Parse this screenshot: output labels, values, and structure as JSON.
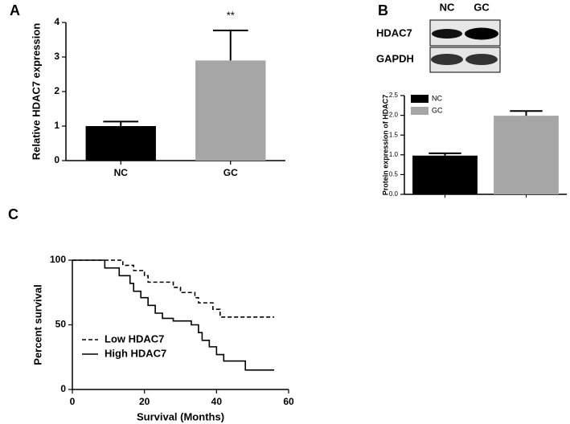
{
  "chart_data": [
    {
      "type": "bar",
      "panel": "A",
      "ylabel": "Relative HDAC7 expression",
      "categories": [
        "NC",
        "GC"
      ],
      "values": [
        1.0,
        2.9
      ],
      "errors": [
        0.13,
        0.87
      ],
      "colors": [
        "#000000",
        "#a6a6a6"
      ],
      "annotations": [
        null,
        "**"
      ],
      "ylim": [
        0,
        4
      ],
      "yticks": [
        0,
        1,
        2,
        3,
        4
      ]
    },
    {
      "type": "bar",
      "panel": "B",
      "ylabel": "Protein expression of HDAC7",
      "blot": {
        "lanes": [
          "NC",
          "GC"
        ],
        "rows": [
          "HDAC7",
          "GAPDH"
        ]
      },
      "series": [
        {
          "name": "NC",
          "color": "#000000",
          "values": [
            0.98
          ],
          "errors": [
            0.06
          ]
        },
        {
          "name": "GC",
          "color": "#a6a6a6",
          "values": [
            1.99
          ],
          "errors": [
            0.12
          ]
        }
      ],
      "legend": "upper left",
      "ylim": [
        0,
        2.5
      ],
      "yticks": [
        {
          "value": 0,
          "label": "0.0"
        },
        {
          "value": 0.5,
          "label": "0.5"
        },
        {
          "value": 1,
          "label": "1.0"
        },
        {
          "value": 1.5,
          "label": "1.5"
        },
        {
          "value": 2,
          "label": "2.0"
        },
        {
          "value": 2.5,
          "label": "2.5"
        }
      ]
    },
    {
      "type": "step",
      "panel": "C",
      "xlabel": "Survival (Months)",
      "ylabel": "Percent survival",
      "series": [
        {
          "name": "Low HDAC7",
          "color": "#000000",
          "dash": true,
          "x": [
            0,
            14,
            17,
            20,
            21,
            28,
            30,
            34,
            35,
            39,
            41,
            56
          ],
          "values": [
            100,
            96,
            92,
            88,
            83,
            79,
            75,
            71,
            67,
            62,
            56,
            56
          ]
        },
        {
          "name": "High HDAC7",
          "color": "#000000",
          "dash": false,
          "x": [
            0,
            9,
            13,
            16,
            17,
            19,
            21,
            23,
            25,
            28,
            33,
            35,
            36,
            38,
            40,
            42,
            48,
            56
          ],
          "values": [
            100,
            94,
            88,
            82,
            76,
            71,
            65,
            59,
            55,
            53,
            50,
            44,
            38,
            33,
            27,
            22,
            15,
            15
          ]
        }
      ],
      "legend": "lower left",
      "xlim": [
        0,
        60
      ],
      "xticks": [
        0,
        20,
        40,
        60
      ],
      "ylim": [
        0,
        100
      ],
      "yticks": [
        0,
        50,
        100
      ]
    }
  ]
}
